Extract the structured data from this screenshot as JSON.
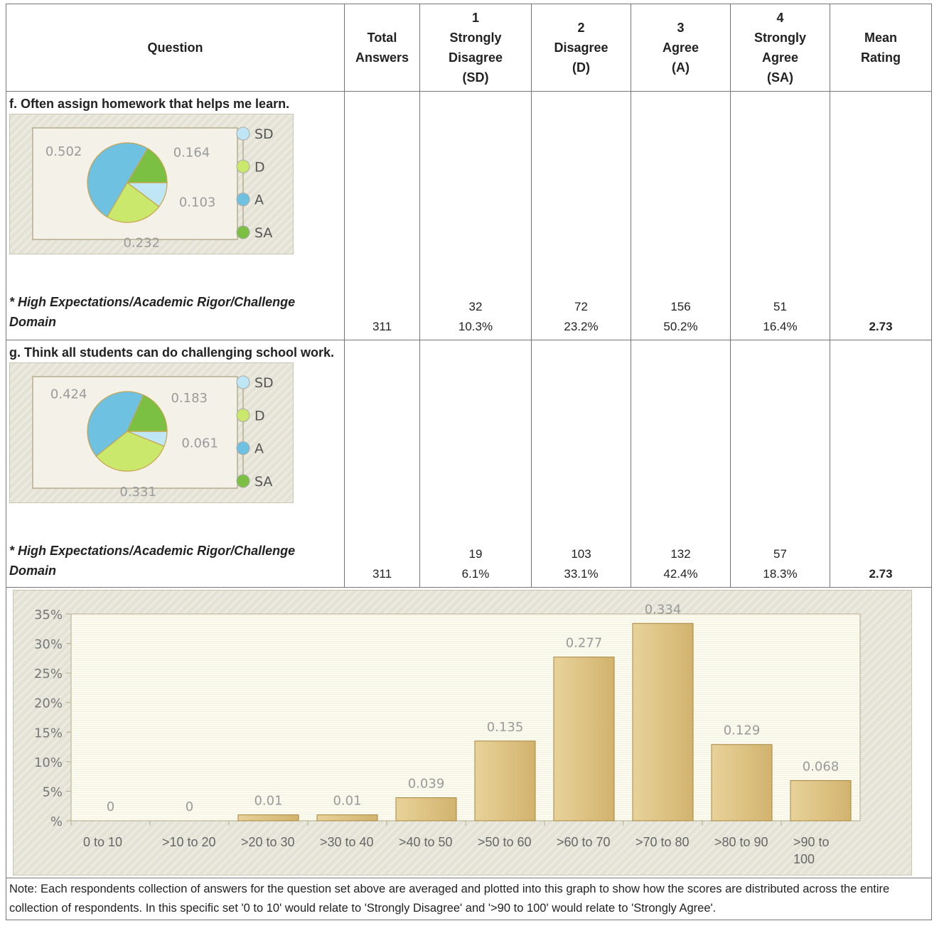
{
  "table": {
    "headers": [
      [
        "Question"
      ],
      [
        "Total",
        "Answers"
      ],
      [
        "1",
        "Strongly",
        "Disagree",
        "(SD)"
      ],
      [
        "2",
        "Disagree",
        "(D)"
      ],
      [
        "3",
        "Agree",
        "(A)"
      ],
      [
        "4",
        "Strongly",
        "Agree",
        "(SA)"
      ],
      [
        "Mean",
        "Rating"
      ]
    ],
    "rows": [
      {
        "question": "f. Often assign homework that helps me learn.",
        "domain": "* High Expectations/Academic Rigor/Challenge Domain",
        "total": 311,
        "counts": [
          32,
          72,
          156,
          51
        ],
        "percents": [
          "10.3%",
          "23.2%",
          "50.2%",
          "16.4%"
        ],
        "mean": 2.73
      },
      {
        "question": "g. Think all students can do challenging school work.",
        "domain": "* High Expectations/Academic Rigor/Challenge Domain",
        "total": 311,
        "counts": [
          19,
          103,
          132,
          57
        ],
        "percents": [
          "6.1%",
          "33.1%",
          "42.4%",
          "18.3%"
        ],
        "mean": 2.73
      }
    ],
    "note": "Note: Each respondents collection of answers for the question set above are averaged and plotted into this graph to show how the scores are distributed across the entire collection of respondents. In this specific set '0 to 10' would relate to 'Strongly Disagree' and '>90 to 100' would relate to 'Strongly Agree'."
  },
  "chart_data": [
    {
      "type": "pie",
      "categories": [
        "SD",
        "D",
        "A",
        "SA"
      ],
      "values": [
        0.103,
        0.232,
        0.502,
        0.164
      ],
      "colors": [
        "#bfe6f4",
        "#c9e86c",
        "#6fc1e2",
        "#7cc043"
      ]
    },
    {
      "type": "pie",
      "categories": [
        "SD",
        "D",
        "A",
        "SA"
      ],
      "values": [
        0.061,
        0.331,
        0.424,
        0.183
      ],
      "colors": [
        "#bfe6f4",
        "#c9e86c",
        "#6fc1e2",
        "#7cc043"
      ]
    },
    {
      "type": "bar",
      "categories": [
        "0 to 10",
        ">10 to 20",
        ">20 to 30",
        ">30 to 40",
        ">40 to 50",
        ">50 to 60",
        ">60 to 70",
        ">70 to 80",
        ">80 to 90",
        ">90 to 100"
      ],
      "values": [
        0,
        0,
        0.01,
        0.01,
        0.039,
        0.135,
        0.277,
        0.334,
        0.129,
        0.068
      ],
      "color": "#d2b36e",
      "ylim": [
        0,
        0.35
      ],
      "yticks": [
        {
          "value": 0,
          "label": "%"
        },
        {
          "value": 0.05,
          "label": "5%"
        },
        {
          "value": 0.1,
          "label": "10%"
        },
        {
          "value": 0.15,
          "label": "15%"
        },
        {
          "value": 0.2,
          "label": "20%"
        },
        {
          "value": 0.25,
          "label": "25%"
        },
        {
          "value": 0.3,
          "label": "30%"
        },
        {
          "value": 0.35,
          "label": "35%"
        }
      ]
    }
  ]
}
